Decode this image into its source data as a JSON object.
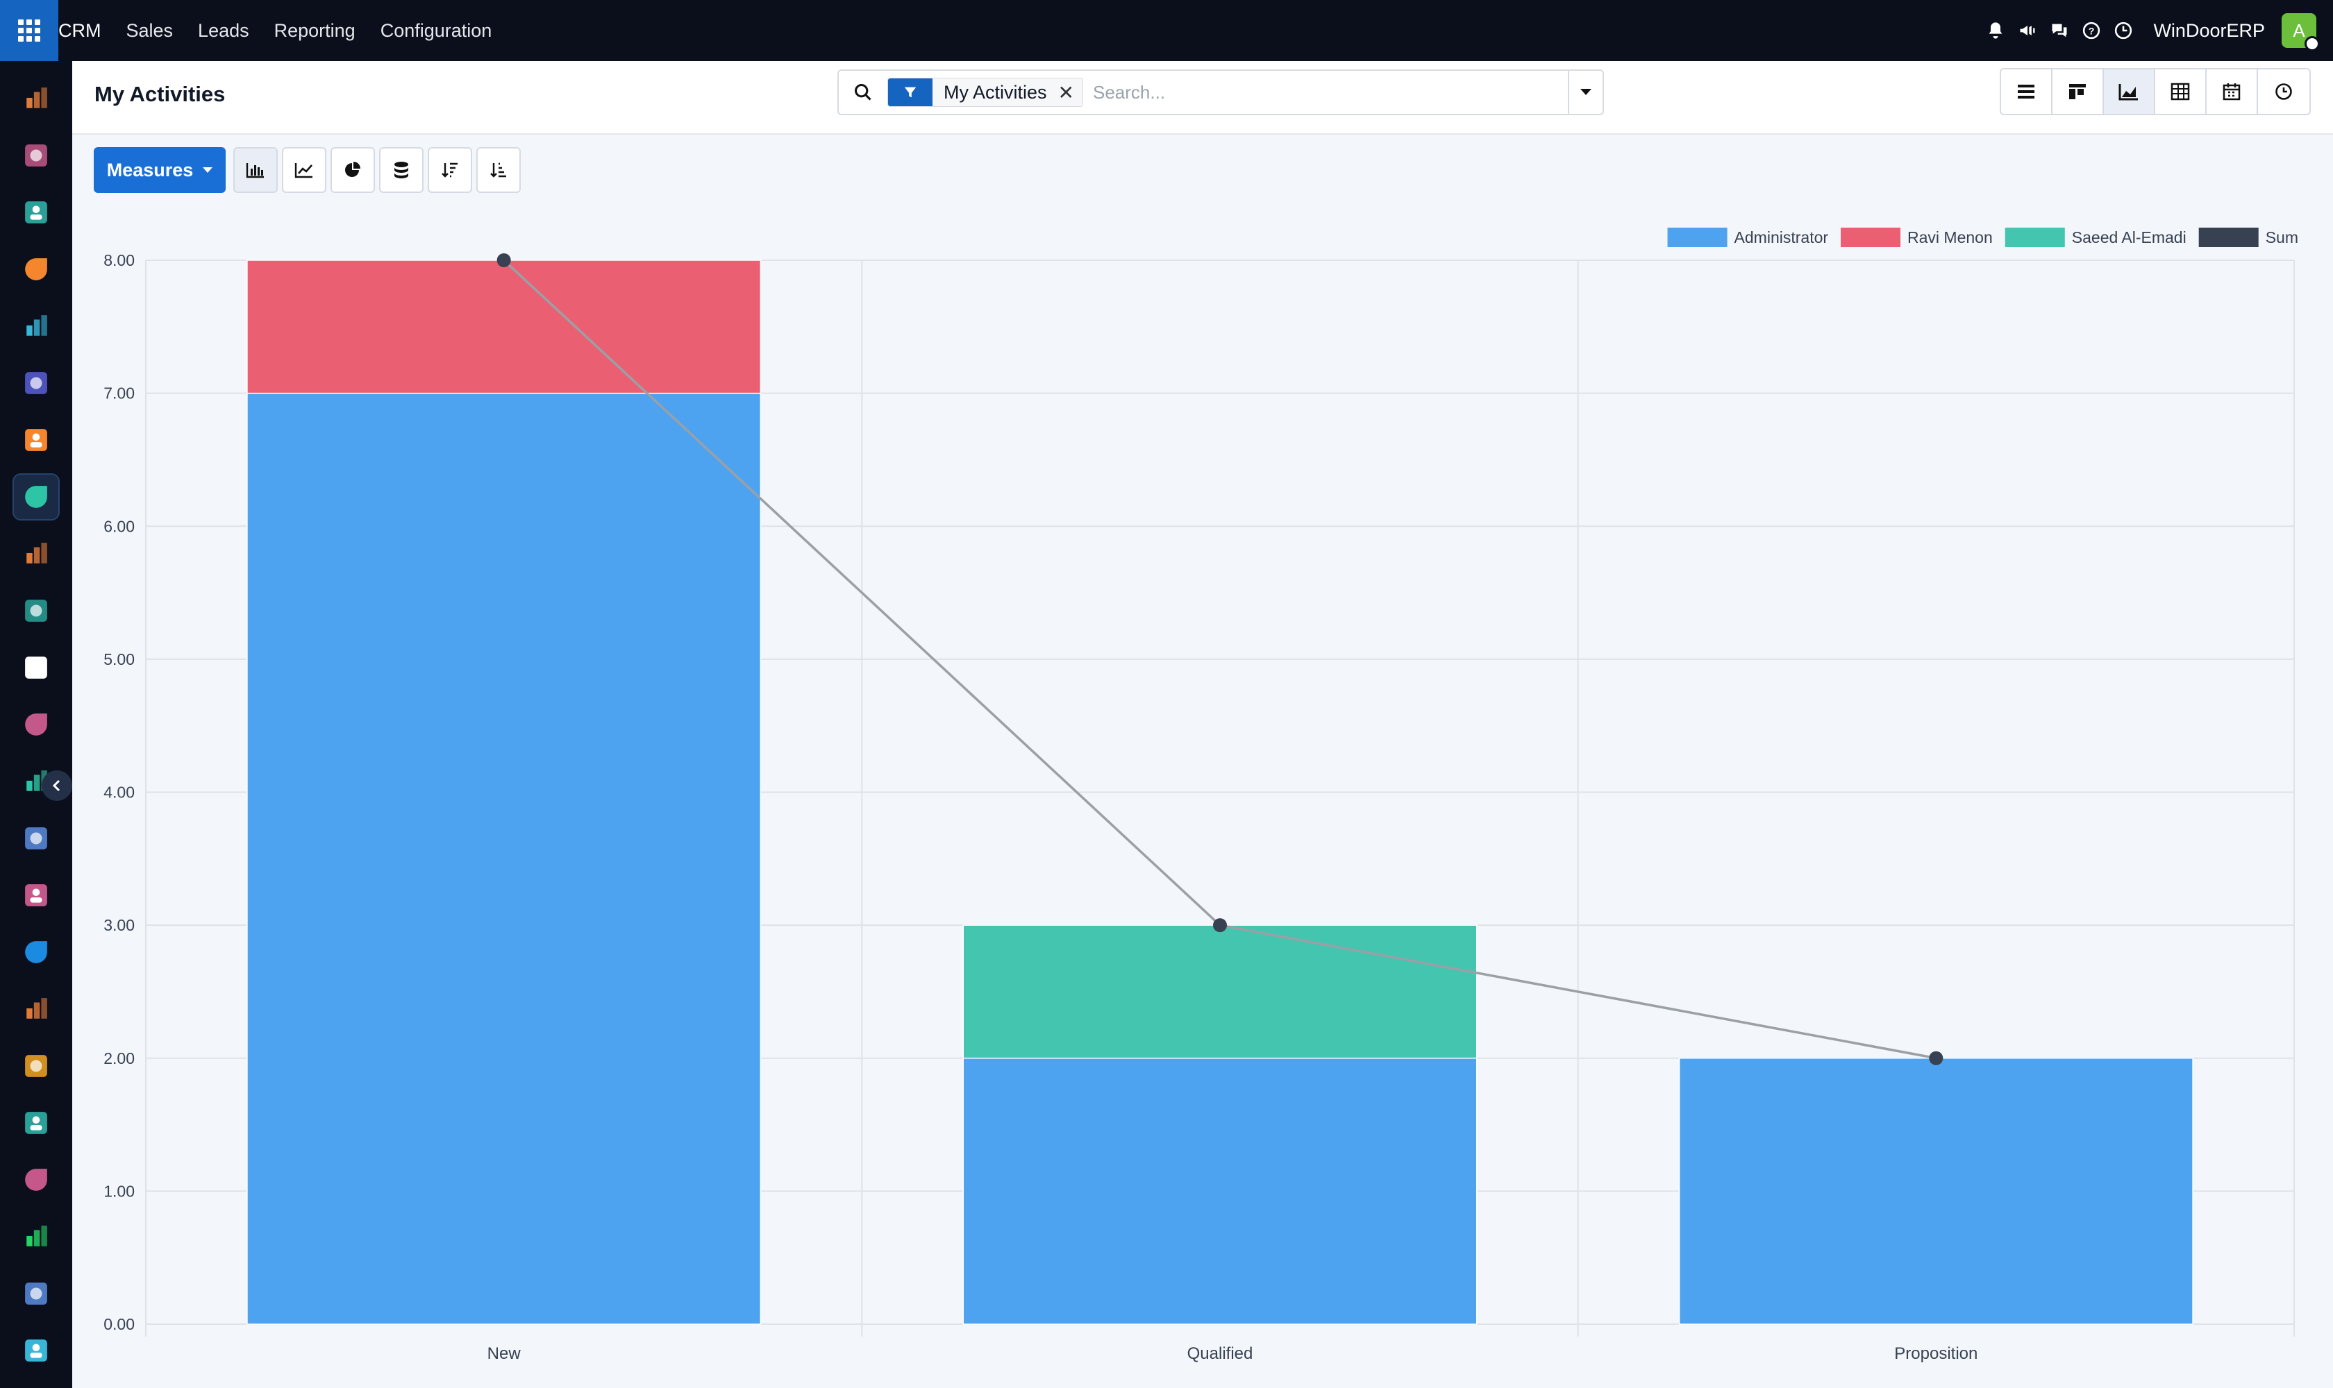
{
  "navbar": {
    "menu": [
      "CRM",
      "Sales",
      "Leads",
      "Reporting",
      "Configuration"
    ],
    "company": "WinDoorERP",
    "avatar_initial": "A",
    "icons": [
      "bell-icon",
      "megaphone-icon",
      "chat-icon",
      "help-icon",
      "clock-icon"
    ]
  },
  "sidebar": {
    "apps": [
      {
        "name": "dashboards-app-icon",
        "color": "#e07b39"
      },
      {
        "name": "discuss-app-icon",
        "color": "#c4588a"
      },
      {
        "name": "contacts-app-icon",
        "color": "#2aa198"
      },
      {
        "name": "livechat-app-icon",
        "color": "#f5862e"
      },
      {
        "name": "website-app-icon",
        "color": "#38b6d8"
      },
      {
        "name": "email-marketing-app-icon",
        "color": "#5a5fd8"
      },
      {
        "name": "notes-app-icon",
        "color": "#f5862e"
      },
      {
        "name": "crm-app-icon",
        "color": "#2ec4a6"
      },
      {
        "name": "sales-app-icon",
        "color": "#e07b39"
      },
      {
        "name": "employees-app-icon",
        "color": "#2aa198"
      },
      {
        "name": "inventory-app-icon",
        "color": "#ffffff"
      },
      {
        "name": "timesheets-app-icon",
        "color": "#c4588a"
      },
      {
        "name": "project-app-icon",
        "color": "#2ec4a6"
      },
      {
        "name": "knowledge-app-icon",
        "color": "#5a8de0"
      },
      {
        "name": "barcode-app-icon",
        "color": "#c4588a"
      },
      {
        "name": "invoicing-app-icon",
        "color": "#1a8be0"
      },
      {
        "name": "members-app-icon",
        "color": "#e07b39"
      },
      {
        "name": "calendar-app-icon",
        "color": "#f5a623"
      },
      {
        "name": "sign-app-icon",
        "color": "#2aa198"
      },
      {
        "name": "apps-app-icon",
        "color": "#c4588a"
      },
      {
        "name": "whatsapp-app-icon",
        "color": "#25d366"
      },
      {
        "name": "helpdesk-app-icon",
        "color": "#5a8de0"
      },
      {
        "name": "website2-app-icon",
        "color": "#38b6d8"
      }
    ],
    "active_index": 7
  },
  "control_panel": {
    "title": "My Activities",
    "search": {
      "facet_label": "My Activities",
      "placeholder": "Search..."
    },
    "views": [
      "list-view-icon",
      "kanban-view-icon",
      "graph-view-icon",
      "pivot-view-icon",
      "calendar-view-icon",
      "activity-view-icon"
    ],
    "active_view": 2
  },
  "toolbar": {
    "measures_label": "Measures",
    "tools": [
      "bar-chart-icon",
      "line-chart-icon",
      "pie-chart-icon",
      "stacked-icon",
      "sort-descending-icon",
      "sort-ascending-icon"
    ],
    "active_tool": 0
  },
  "chart_data": {
    "type": "bar",
    "stacked": true,
    "categories": [
      "New",
      "Qualified",
      "Proposition"
    ],
    "series": [
      {
        "name": "Administrator",
        "color": "#4da3f0",
        "values": [
          7,
          2,
          2
        ]
      },
      {
        "name": "Ravi Menon",
        "color": "#ea6072",
        "values": [
          1,
          0,
          0
        ]
      },
      {
        "name": "Saeed Al-Emadi",
        "color": "#43c5b0",
        "values": [
          0,
          1,
          0
        ]
      }
    ],
    "sum_line": {
      "name": "Sum",
      "color": "#374151",
      "values": [
        8,
        3,
        2
      ]
    },
    "ylim": [
      0,
      8
    ],
    "yticks": [
      "0.00",
      "1.00",
      "2.00",
      "3.00",
      "4.00",
      "5.00",
      "6.00",
      "7.00",
      "8.00"
    ],
    "legend_position": "top-right",
    "grid": true
  }
}
